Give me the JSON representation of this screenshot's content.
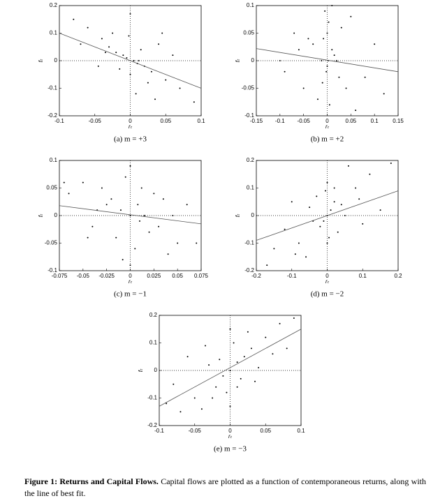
{
  "chart_data": [
    {
      "type": "scatter",
      "xlabel": "rₜ",
      "ylabel": "fₜ",
      "caption": "(a) m = +3",
      "xlim": [
        -0.1,
        0.1
      ],
      "xticks": [
        -0.1,
        -0.05,
        0,
        0.05,
        0.1
      ],
      "ylim": [
        -0.2,
        0.2
      ],
      "yticks": [
        -0.2,
        -0.1,
        0,
        0.1,
        0.2
      ],
      "zero_lines": true,
      "color": "#000000",
      "x": [
        -0.02,
        0.01,
        0.005,
        -0.01,
        0.03,
        -0.04,
        0.02,
        -0.005,
        0.0,
        0.015,
        -0.06,
        0.05,
        -0.03,
        0.04,
        -0.015,
        0.008,
        -0.08,
        0.07,
        -0.025,
        0.06,
        0.09,
        -0.045,
        0.025,
        -0.002,
        0.012,
        -0.035,
        0.035,
        0.0,
        -0.07,
        0.045
      ],
      "y": [
        0.03,
        -0.01,
        0.0,
        0.02,
        -0.04,
        0.08,
        -0.02,
        0.01,
        -0.05,
        0.04,
        0.12,
        -0.07,
        0.05,
        0.06,
        -0.03,
        -0.12,
        0.15,
        -0.1,
        0.1,
        0.02,
        -0.15,
        -0.02,
        -0.08,
        0.09,
        0.0,
        0.03,
        -0.14,
        0.17,
        0.06,
        0.1
      ],
      "fit": {
        "x": [
          -0.1,
          0.1
        ],
        "y": [
          0.1,
          -0.1
        ]
      }
    },
    {
      "type": "scatter",
      "xlabel": "rₜ",
      "ylabel": "fₜ",
      "caption": "(b) m = +2",
      "xlim": [
        -0.15,
        0.15
      ],
      "xticks": [
        -0.15,
        -0.1,
        -0.05,
        0,
        0.05,
        0.1,
        0.15
      ],
      "ylim": [
        -0.1,
        0.1
      ],
      "yticks": [
        -0.1,
        -0.05,
        0,
        0.05,
        0.1
      ],
      "zero_lines": true,
      "color": "#000000",
      "x": [
        0.0,
        -0.01,
        0.01,
        0.005,
        -0.005,
        0.02,
        -0.03,
        0.04,
        -0.06,
        0.08,
        -0.1,
        0.12,
        0.003,
        -0.002,
        0.015,
        -0.02,
        0.03,
        -0.04,
        0.06,
        -0.07,
        0.1,
        0.0,
        0.01,
        -0.012,
        0.05,
        -0.05,
        0.002,
        -0.008,
        0.025,
        -0.09
      ],
      "y": [
        0.05,
        -0.04,
        0.02,
        -0.08,
        0.09,
        0.0,
        0.03,
        -0.05,
        0.02,
        -0.03,
        0.0,
        -0.06,
        0.07,
        -0.02,
        0.01,
        -0.07,
        0.06,
        0.04,
        -0.09,
        0.05,
        0.03,
        -0.01,
        0.1,
        0.0,
        0.08,
        -0.05,
        0.0,
        0.04,
        -0.03,
        -0.02
      ],
      "fit": {
        "x": [
          -0.15,
          0.15
        ],
        "y": [
          0.022,
          -0.02
        ]
      }
    },
    {
      "type": "scatter",
      "xlabel": "rₜ",
      "ylabel": "fₜ",
      "caption": "(c) m = −1",
      "xlim": [
        -0.075,
        0.075
      ],
      "xticks": [
        -0.075,
        -0.05,
        -0.025,
        0,
        0.025,
        0.05,
        0.075
      ],
      "ylim": [
        -0.1,
        0.1
      ],
      "yticks": [
        -0.1,
        -0.05,
        0,
        0.05,
        0.1
      ],
      "zero_lines": true,
      "color": "#000000",
      "x": [
        0.0,
        -0.01,
        0.01,
        -0.02,
        0.02,
        -0.03,
        0.03,
        -0.05,
        0.05,
        -0.065,
        0.06,
        0.005,
        -0.005,
        0.015,
        -0.015,
        0.0,
        0.04,
        -0.04,
        0.025,
        -0.025,
        0.07,
        -0.07,
        0.008,
        -0.008,
        0.035,
        -0.035,
        0.0,
        0.012,
        -0.045,
        0.045
      ],
      "y": [
        0.0,
        0.01,
        -0.01,
        0.03,
        -0.03,
        0.05,
        -0.02,
        0.06,
        -0.05,
        0.04,
        0.02,
        -0.06,
        0.07,
        0.0,
        -0.04,
        0.09,
        -0.07,
        -0.02,
        0.04,
        0.02,
        -0.05,
        0.06,
        0.02,
        -0.08,
        0.03,
        0.01,
        -0.09,
        0.05,
        -0.04,
        0.0
      ],
      "fit": {
        "x": [
          -0.075,
          0.075
        ],
        "y": [
          0.018,
          -0.015
        ]
      }
    },
    {
      "type": "scatter",
      "xlabel": "rₜ",
      "ylabel": "fₜ",
      "caption": "(d) m = −2",
      "xlim": [
        -0.2,
        0.2
      ],
      "xticks": [
        -0.2,
        -0.1,
        0,
        0.1,
        0.2
      ],
      "ylim": [
        -0.2,
        0.2
      ],
      "yticks": [
        -0.2,
        -0.1,
        0,
        0.1,
        0.2
      ],
      "zero_lines": true,
      "color": "#000000",
      "x": [
        0.0,
        0.01,
        -0.01,
        0.02,
        -0.02,
        0.05,
        -0.05,
        0.08,
        -0.08,
        0.12,
        -0.12,
        0.15,
        -0.15,
        0.03,
        -0.03,
        0.0,
        0.06,
        -0.06,
        0.1,
        -0.1,
        0.005,
        -0.005,
        0.04,
        -0.04,
        0.18,
        -0.17,
        0.09,
        -0.09,
        0.0,
        0.02
      ],
      "y": [
        0.0,
        0.02,
        -0.02,
        0.05,
        -0.04,
        0.0,
        0.03,
        0.1,
        -0.1,
        0.15,
        -0.05,
        0.02,
        -0.12,
        -0.06,
        0.07,
        0.12,
        0.18,
        -0.15,
        -0.03,
        0.05,
        -0.08,
        0.09,
        0.04,
        -0.02,
        0.19,
        -0.18,
        0.06,
        -0.14,
        -0.1,
        0.1
      ],
      "fit": {
        "x": [
          -0.2,
          0.2
        ],
        "y": [
          -0.09,
          0.09
        ]
      }
    },
    {
      "type": "scatter",
      "xlabel": "rₜ",
      "ylabel": "fₜ",
      "caption": "(e) m = −3",
      "xlim": [
        -0.1,
        0.1
      ],
      "xticks": [
        -0.1,
        -0.05,
        0,
        0.05,
        0.1
      ],
      "ylim": [
        -0.2,
        0.2
      ],
      "yticks": [
        -0.2,
        -0.1,
        0,
        0.1,
        0.2
      ],
      "zero_lines": true,
      "color": "#000000",
      "x": [
        0.0,
        0.01,
        -0.01,
        0.02,
        -0.02,
        0.03,
        -0.03,
        0.05,
        -0.05,
        0.07,
        -0.07,
        0.09,
        -0.09,
        0.005,
        -0.005,
        0.015,
        -0.015,
        0.04,
        -0.04,
        0.06,
        -0.06,
        0.0,
        0.025,
        -0.025,
        0.08,
        -0.08,
        0.035,
        -0.035,
        0.0,
        0.01
      ],
      "y": [
        0.0,
        0.03,
        -0.02,
        0.05,
        -0.06,
        0.08,
        0.02,
        0.12,
        -0.1,
        0.17,
        -0.15,
        0.19,
        -0.12,
        0.1,
        -0.08,
        -0.03,
        0.04,
        0.01,
        -0.14,
        0.06,
        0.05,
        0.15,
        0.14,
        -0.1,
        0.08,
        -0.05,
        -0.04,
        0.09,
        -0.13,
        -0.06
      ],
      "fit": {
        "x": [
          -0.1,
          0.1
        ],
        "y": [
          -0.13,
          0.15
        ]
      }
    }
  ],
  "figure_caption": {
    "label": "Figure 1: Returns and Capital Flows.",
    "text": "Capital flows are plotted as a function of contemporaneous returns, along with the line of best fit."
  }
}
